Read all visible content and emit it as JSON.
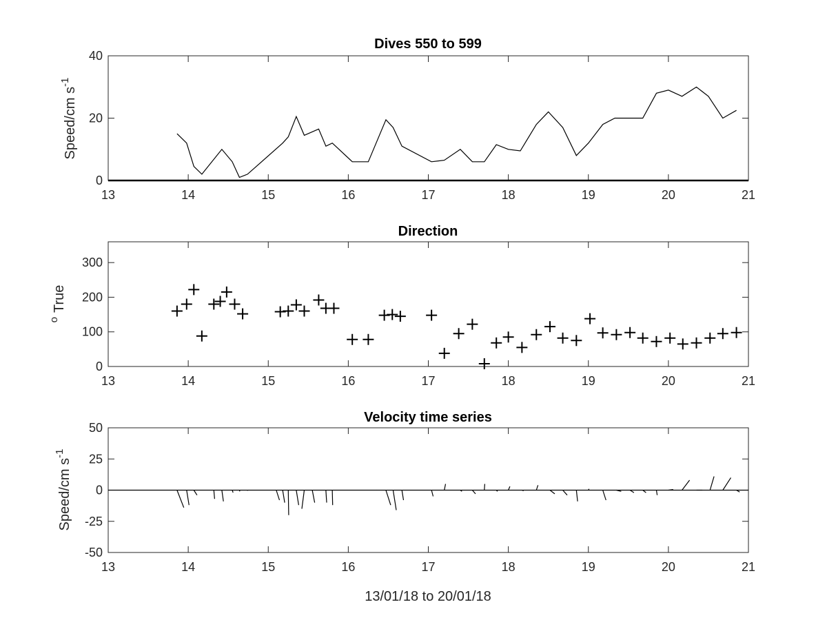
{
  "xlabel": "13/01/18 to 20/01/18",
  "chart_data": [
    {
      "type": "line",
      "title": "Dives 550 to 599",
      "ylabel": "Speed/cm s",
      "ylabel_sup": "-1",
      "xlim": [
        13,
        21
      ],
      "ylim": [
        0,
        40
      ],
      "xticks": [
        "13",
        "14",
        "15",
        "16",
        "17",
        "18",
        "19",
        "20",
        "21"
      ],
      "yticks": [
        "0",
        "20",
        "40"
      ],
      "grid": false,
      "x": [
        13.86,
        13.98,
        14.07,
        14.17,
        14.42,
        14.55,
        14.64,
        14.74,
        15.18,
        15.25,
        15.35,
        15.45,
        15.63,
        15.72,
        15.8,
        16.05,
        16.25,
        16.47,
        16.56,
        16.67,
        17.04,
        17.2,
        17.4,
        17.55,
        17.7,
        17.85,
        18.0,
        18.15,
        18.35,
        18.5,
        18.68,
        18.85,
        19.0,
        19.18,
        19.33,
        19.5,
        19.68,
        19.85,
        20.0,
        20.17,
        20.35,
        20.5,
        20.68,
        20.85
      ],
      "y": [
        15,
        12,
        4.5,
        2,
        10,
        6,
        1,
        2,
        12,
        14,
        20.5,
        14.5,
        16.5,
        11,
        12,
        6,
        6,
        19.5,
        17,
        11,
        6,
        6.5,
        10,
        6,
        6,
        11.5,
        10,
        9.5,
        18,
        22,
        17,
        8,
        12,
        18,
        20,
        20,
        20,
        28,
        29,
        27,
        30,
        27,
        20,
        22.5
      ]
    },
    {
      "type": "scatter",
      "title": "Direction",
      "ylabel": "True",
      "ylabel_sup": "o",
      "xlim": [
        13,
        21
      ],
      "ylim": [
        0,
        360
      ],
      "xticks": [
        "13",
        "14",
        "15",
        "16",
        "17",
        "18",
        "19",
        "20",
        "21"
      ],
      "yticks": [
        "0",
        "100",
        "200",
        "300"
      ],
      "marker": "+",
      "grid": false,
      "x": [
        13.86,
        13.98,
        14.07,
        14.17,
        14.32,
        14.4,
        14.48,
        14.58,
        14.68,
        15.15,
        15.25,
        15.35,
        15.45,
        15.63,
        15.72,
        15.82,
        16.05,
        16.25,
        16.45,
        16.55,
        16.65,
        17.04,
        17.2,
        17.38,
        17.55,
        17.7,
        17.85,
        18.0,
        18.17,
        18.35,
        18.52,
        18.68,
        18.85,
        19.02,
        19.18,
        19.35,
        19.52,
        19.68,
        19.85,
        20.02,
        20.18,
        20.35,
        20.52,
        20.68,
        20.85
      ],
      "y": [
        160,
        180,
        222,
        88,
        180,
        188,
        215,
        180,
        152,
        158,
        160,
        178,
        160,
        192,
        168,
        168,
        78,
        78,
        148,
        150,
        145,
        148,
        38,
        95,
        122,
        8,
        68,
        85,
        55,
        92,
        115,
        82,
        75,
        138,
        97,
        92,
        98,
        82,
        72,
        82,
        65,
        68,
        82,
        95,
        98
      ]
    },
    {
      "type": "quiver",
      "title": "Velocity time series",
      "ylabel": "Speed/cm s",
      "ylabel_sup": "-1",
      "xlim": [
        13,
        21
      ],
      "ylim": [
        -50,
        50
      ],
      "xticks": [
        "13",
        "14",
        "15",
        "16",
        "17",
        "18",
        "19",
        "20",
        "21"
      ],
      "yticks": [
        "-50",
        "-25",
        "0",
        "25",
        "50"
      ],
      "grid": false,
      "x": [
        13.86,
        13.98,
        14.07,
        14.32,
        14.42,
        14.55,
        14.64,
        14.74,
        15.1,
        15.18,
        15.25,
        15.35,
        15.45,
        15.55,
        15.72,
        15.8,
        16.15,
        16.35,
        16.47,
        16.56,
        16.67,
        17.04,
        17.2,
        17.4,
        17.55,
        17.7,
        17.85,
        18.0,
        18.17,
        18.35,
        18.52,
        18.68,
        18.85,
        19.0,
        19.18,
        19.35,
        19.52,
        19.68,
        19.85,
        20.0,
        20.17,
        20.35,
        20.52,
        20.68,
        20.85
      ],
      "u": [
        0.85,
        0.3,
        0.4,
        0.1,
        0.2,
        0.1,
        0.05,
        0.02,
        0.4,
        0.25,
        0.05,
        0.3,
        -0.3,
        0.3,
        0.1,
        0.05,
        0.01,
        0.01,
        0.6,
        0.4,
        0.2,
        0.2,
        0.15,
        0.2,
        0.4,
        0.05,
        0.15,
        0.2,
        0.2,
        0.2,
        0.6,
        0.55,
        0.15,
        0.08,
        0.4,
        0.6,
        0.5,
        0.4,
        0.1,
        0.6,
        0.95,
        0.75,
        0.5,
        1.0,
        0.4
      ],
      "v": [
        -14,
        -12,
        -4,
        -7,
        -9,
        -2,
        -1,
        -0.5,
        -8,
        -10,
        -20,
        -12,
        -15,
        -10,
        -10,
        -12,
        0,
        0,
        -12,
        -16,
        -8,
        -5,
        5,
        -1,
        -3,
        5,
        -1,
        3,
        -0.5,
        4,
        -3,
        -4,
        -9,
        1,
        -8,
        -1,
        -2,
        -2,
        -4,
        0.5,
        8,
        0,
        11,
        10,
        -1.5
      ]
    }
  ]
}
